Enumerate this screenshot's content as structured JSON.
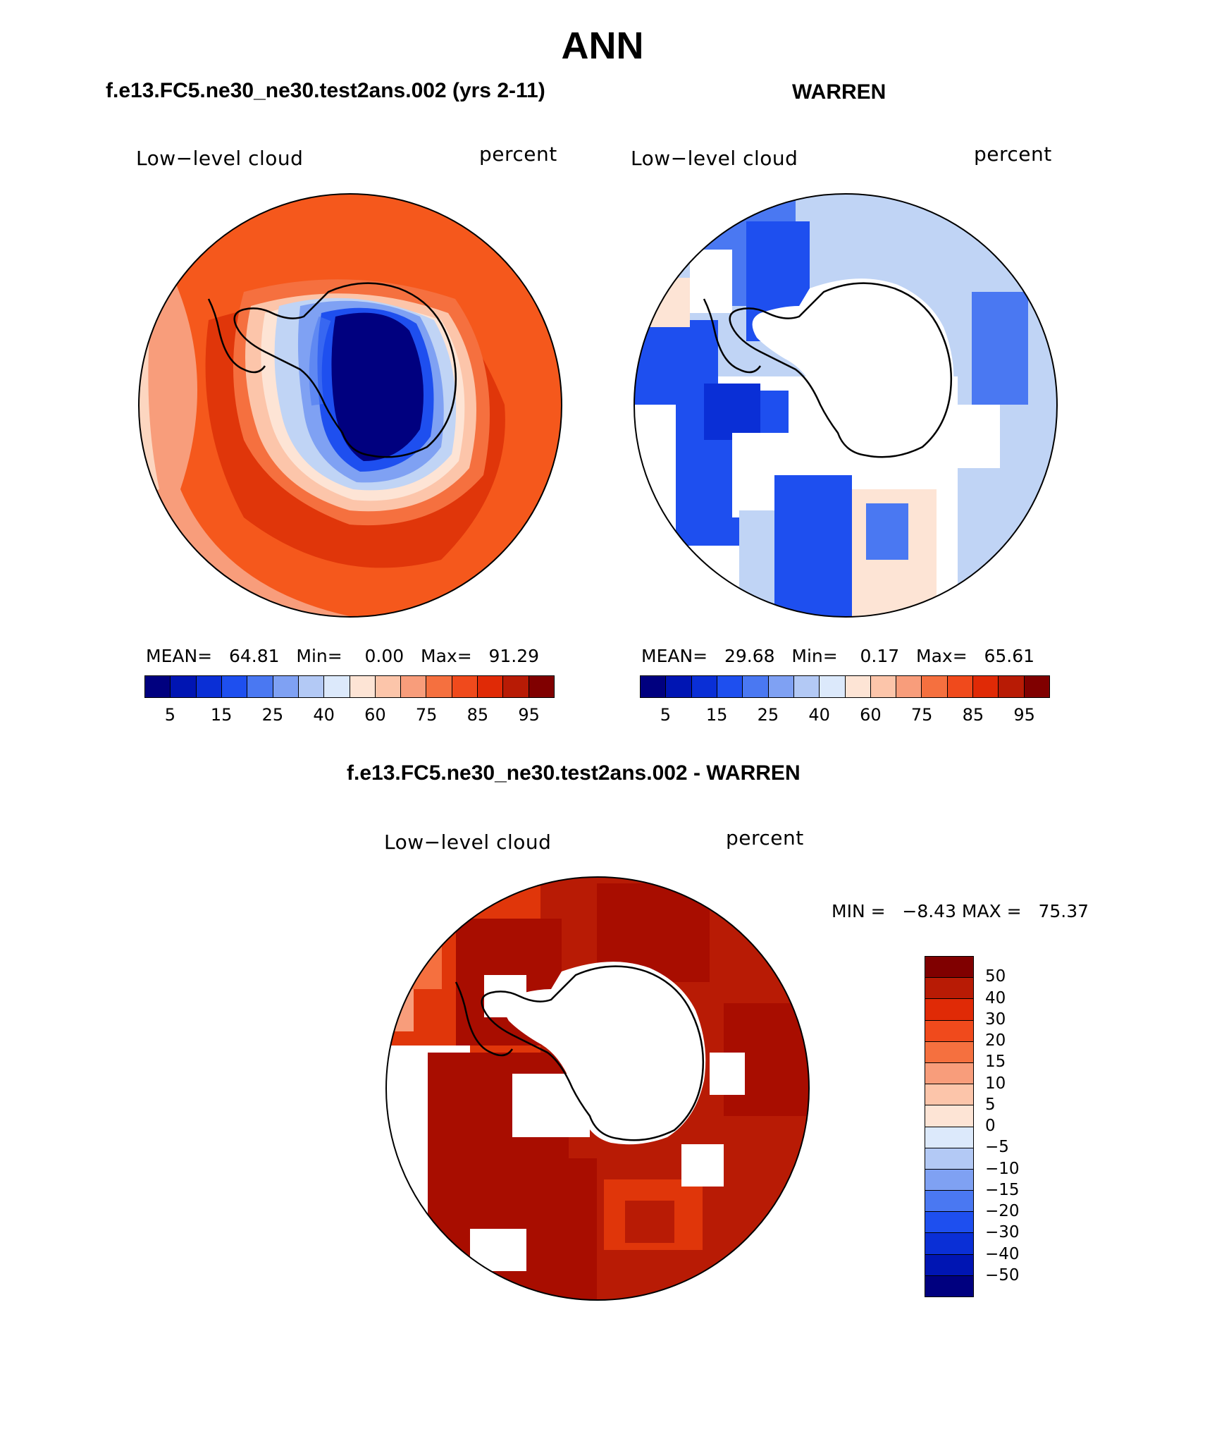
{
  "page_title": "ANN",
  "panel_a": {
    "header": "f.e13.FC5.ne30_ne30.test2ans.002 (yrs 2-11)",
    "var_label": "Low−level cloud",
    "units": "percent",
    "mean_label": "MEAN=",
    "mean_value": "64.81",
    "min_label": "Min=",
    "min_value": "0.00",
    "max_label": "Max=",
    "max_value": "91.29"
  },
  "panel_b": {
    "header": "WARREN",
    "var_label": "Low−level cloud",
    "units": "percent",
    "mean_label": "MEAN=",
    "mean_value": "29.68",
    "min_label": "Min=",
    "min_value": "0.17",
    "max_label": "Max=",
    "max_value": "65.61"
  },
  "panel_c": {
    "header": "f.e13.FC5.ne30_ne30.test2ans.002 - WARREN",
    "var_label": "Low−level cloud",
    "units": "percent",
    "minmax_text": "MIN =   −8.43 MAX =   75.37"
  },
  "colorbar_abs": {
    "colors": [
      "#00007f",
      "#0015b3",
      "#0a2fd6",
      "#1e4fef",
      "#4a78f2",
      "#7fa1f3",
      "#b3c9f5",
      "#dce9fb",
      "#fde4d5",
      "#fcc5aa",
      "#f89d7b",
      "#f5703f",
      "#f04a1c",
      "#e02a06",
      "#b81b05",
      "#800000"
    ],
    "tick_labels": [
      "5",
      "15",
      "25",
      "40",
      "60",
      "75",
      "85",
      "95"
    ]
  },
  "colorbar_diff": {
    "colors": [
      "#800000",
      "#b81b05",
      "#e02a06",
      "#f04a1c",
      "#f5703f",
      "#f89d7b",
      "#fcc5aa",
      "#fde4d5",
      "#dce9fb",
      "#b3c9f5",
      "#7fa1f3",
      "#4a78f2",
      "#1e4fef",
      "#0a2fd6",
      "#0015b3",
      "#00007f"
    ],
    "tick_labels": [
      "50",
      "40",
      "30",
      "20",
      "15",
      "10",
      "5",
      "0",
      "−5",
      "−10",
      "−15",
      "−20",
      "−30",
      "−40",
      "−50"
    ]
  },
  "map_colors": {
    "deep_red": "#a80d00",
    "red": "#e0360a",
    "orange": "#f5581c",
    "light_orange": "#f89d7b",
    "peach": "#fcd6c0",
    "pale_blue": "#c0d4f5",
    "mid_blue": "#4a78f2",
    "blue": "#1e4fef",
    "navy": "#00007f"
  }
}
